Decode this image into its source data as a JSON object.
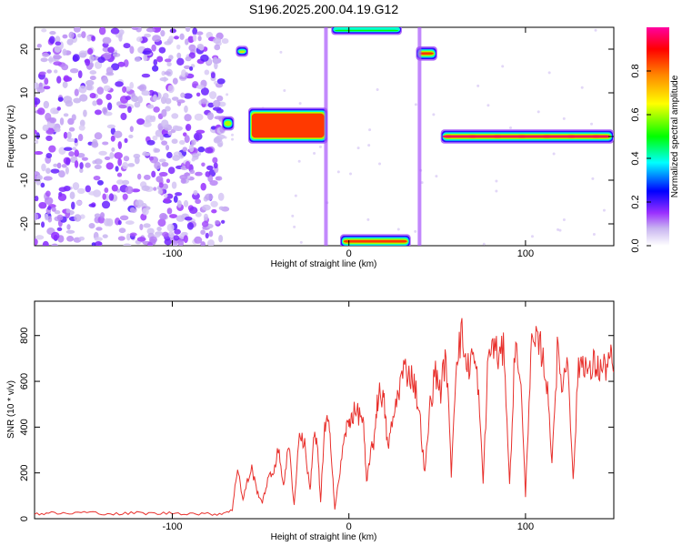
{
  "title": "S196.2025.200.04.19.G12",
  "colorbar": {
    "label": "Normalized spectral amplitude",
    "ticks": [
      "0.0",
      "0.2",
      "0.4",
      "0.6",
      "0.8"
    ],
    "colors": [
      "#ffffff",
      "#c8b4f0",
      "#9b30ff",
      "#0000ff",
      "#00ffff",
      "#00ff00",
      "#ffff00",
      "#ff8800",
      "#ff0000",
      "#ff00a0"
    ]
  },
  "chart_data": [
    {
      "type": "heatmap",
      "xlabel": "Height of straight line (km)",
      "ylabel": "Frequency (Hz)",
      "xlim": [
        -178,
        150
      ],
      "ylim": [
        -25,
        25
      ],
      "xticks": [
        -100,
        0,
        100
      ],
      "xtick_labels": [
        "-100",
        "0",
        "100"
      ],
      "yticks": [
        20,
        10,
        0,
        -10,
        -20
      ],
      "ytick_labels": [
        "20",
        "10",
        "0",
        "-10",
        "-20"
      ],
      "noise_region": {
        "x_range": [
          -178,
          -70
        ],
        "y_range": [
          -25,
          25
        ]
      },
      "features": [
        {
          "x": [
            -72,
            -65
          ],
          "y": [
            2,
            4
          ],
          "amplitude": 0.6
        },
        {
          "x": [
            -64,
            -57
          ],
          "y": [
            19,
            20
          ],
          "amplitude": 0.7
        },
        {
          "x": [
            -57,
            -12
          ],
          "y": [
            -1,
            6
          ],
          "amplitude": 0.85
        },
        {
          "x": [
            -10,
            30
          ],
          "y": [
            24,
            25
          ],
          "amplitude": 0.5
        },
        {
          "x": [
            -5,
            35
          ],
          "y": [
            -25,
            -23
          ],
          "amplitude": 0.85
        },
        {
          "x": [
            38,
            50
          ],
          "y": [
            18,
            20
          ],
          "amplitude": 0.85
        },
        {
          "x": [
            52,
            150
          ],
          "y": [
            -1,
            1
          ],
          "amplitude": 0.95
        }
      ]
    },
    {
      "type": "line",
      "xlabel": "Height of straight line (km)",
      "ylabel": "SNR (10 * v/v)",
      "xlim": [
        -178,
        150
      ],
      "ylim": [
        0,
        950
      ],
      "xticks": [
        -100,
        0,
        100
      ],
      "xtick_labels": [
        "-100",
        "0",
        "100"
      ],
      "yticks": [
        0,
        200,
        400,
        600,
        800
      ],
      "ytick_labels": [
        "0",
        "200",
        "400",
        "600",
        "800"
      ],
      "series": [
        {
          "color": "#e8302c",
          "x": [
            -178,
            -170,
            -160,
            -150,
            -140,
            -130,
            -120,
            -110,
            -100,
            -90,
            -80,
            -72,
            -66,
            -63,
            -60,
            -58,
            -55,
            -52,
            -49,
            -46,
            -43,
            -40,
            -37,
            -34,
            -31,
            -28,
            -25,
            -22,
            -20,
            -18,
            -16,
            -14,
            -12,
            -10,
            -8,
            -5,
            -2,
            0,
            2,
            5,
            8,
            10,
            12,
            14,
            16,
            18,
            20,
            22,
            25,
            28,
            31,
            34,
            37,
            40,
            43,
            46,
            49,
            52,
            55,
            58,
            61,
            64,
            67,
            70,
            73,
            76,
            79,
            82,
            85,
            88,
            91,
            94,
            97,
            100,
            103,
            106,
            109,
            112,
            115,
            118,
            121,
            124,
            127,
            130,
            133,
            136,
            139,
            142,
            145,
            148,
            150
          ],
          "y": [
            20,
            25,
            22,
            28,
            24,
            20,
            26,
            22,
            25,
            23,
            20,
            22,
            40,
            230,
            80,
            150,
            220,
            120,
            70,
            170,
            200,
            300,
            150,
            320,
            60,
            380,
            320,
            120,
            360,
            330,
            70,
            380,
            430,
            300,
            40,
            210,
            380,
            420,
            460,
            460,
            440,
            150,
            280,
            330,
            510,
            560,
            500,
            310,
            430,
            560,
            650,
            640,
            600,
            460,
            190,
            500,
            640,
            560,
            720,
            200,
            730,
            800,
            650,
            720,
            600,
            160,
            720,
            760,
            700,
            740,
            140,
            740,
            650,
            100,
            730,
            760,
            740,
            600,
            260,
            720,
            580,
            720,
            160,
            670,
            700,
            620,
            680,
            650,
            660,
            700,
            640
          ]
        }
      ]
    }
  ]
}
